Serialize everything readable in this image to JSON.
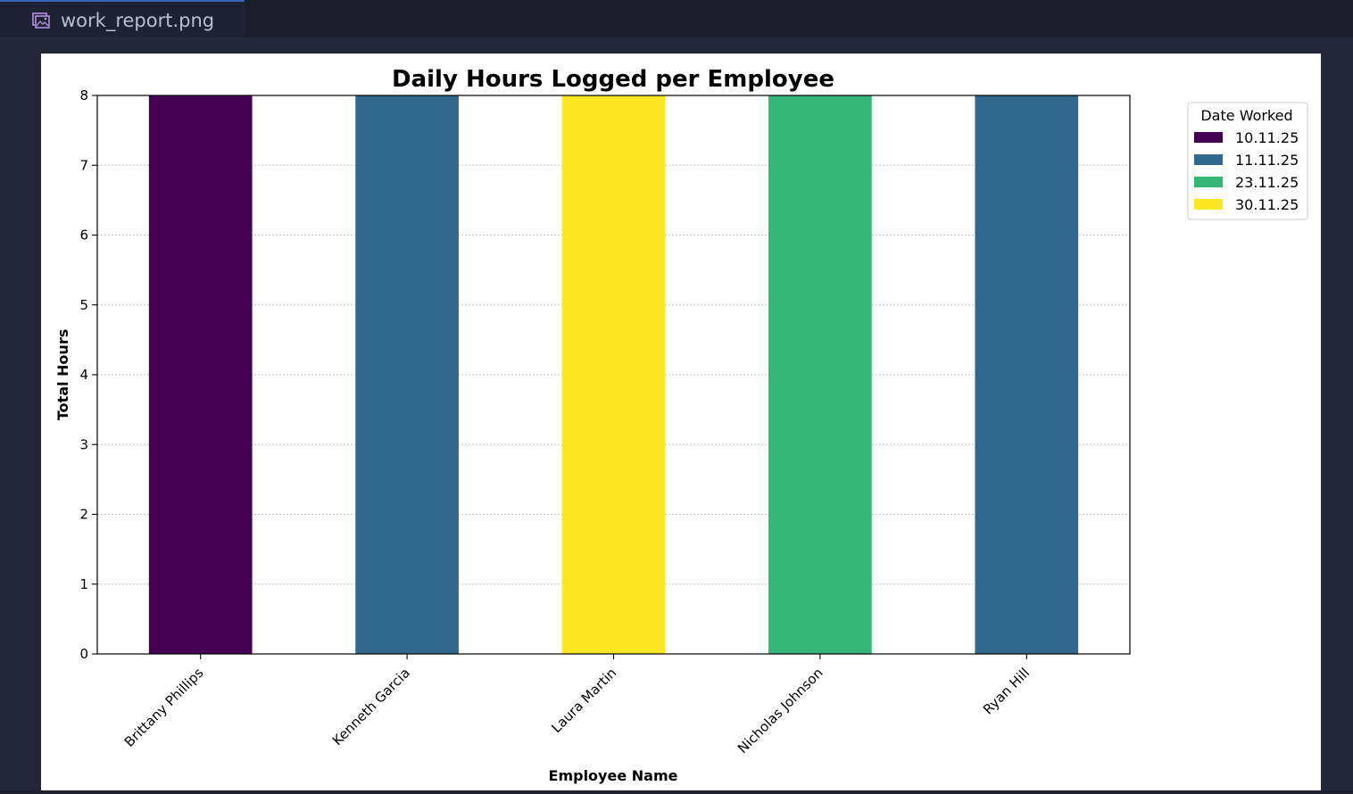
{
  "tab": {
    "filename": "work_report.png",
    "icon": "image-file-icon"
  },
  "colors": {
    "10.11.25": "#440154",
    "11.11.25": "#31688e",
    "23.11.25": "#35b779",
    "30.11.25": "#fde725"
  },
  "chart_data": {
    "type": "bar",
    "stacked": true,
    "title": "Daily Hours Logged per Employee",
    "xlabel": "Employee Name",
    "ylabel": "Total Hours",
    "categories": [
      "Brittany Phillips",
      "Kenneth Garcia",
      "Laura Martin",
      "Nicholas Johnson",
      "Ryan Hill"
    ],
    "series": [
      {
        "name": "10.11.25",
        "values": [
          8,
          0,
          0,
          0,
          0
        ]
      },
      {
        "name": "11.11.25",
        "values": [
          0,
          8,
          0,
          0,
          8
        ]
      },
      {
        "name": "23.11.25",
        "values": [
          0,
          0,
          0,
          8,
          0
        ]
      },
      {
        "name": "30.11.25",
        "values": [
          0,
          0,
          8,
          0,
          0
        ]
      }
    ],
    "ylim": [
      0,
      8
    ],
    "yticks": [
      0,
      1,
      2,
      3,
      4,
      5,
      6,
      7,
      8
    ],
    "grid": "horizontal dotted",
    "legend_title": "Date Worked",
    "legend_position": "outside top-right"
  }
}
